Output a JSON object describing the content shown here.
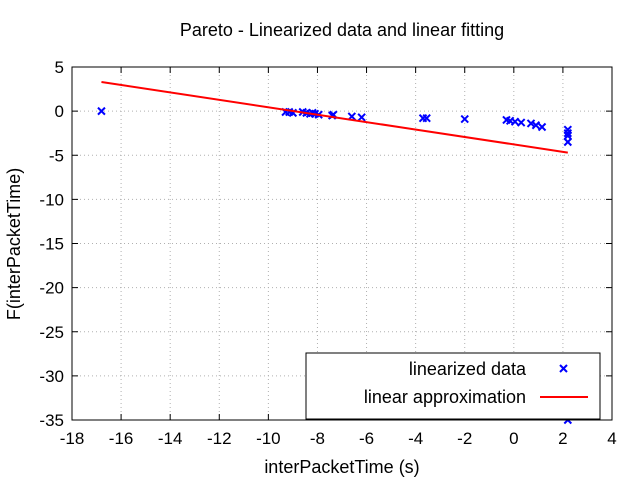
{
  "chart_data": {
    "type": "scatter",
    "title": "Pareto - Linearized data and linear fitting",
    "xlabel": "interPacketTime (s)",
    "ylabel": "F(interPacketTime)",
    "xlim": [
      -18,
      4
    ],
    "ylim": [
      -35,
      5
    ],
    "xticks": [
      -18,
      -16,
      -14,
      -12,
      -10,
      -8,
      -6,
      -4,
      -2,
      0,
      2,
      4
    ],
    "yticks": [
      5,
      0,
      -5,
      -10,
      -15,
      -20,
      -25,
      -30,
      -35
    ],
    "grid": true,
    "legend_position": "bottom-right",
    "series": [
      {
        "name": "linearized data",
        "kind": "points",
        "marker": "x",
        "color": "#0000ff",
        "points": [
          [
            -16.8,
            0.0
          ],
          [
            -9.3,
            -0.1
          ],
          [
            -9.15,
            -0.1
          ],
          [
            -9.0,
            -0.2
          ],
          [
            -8.6,
            -0.1
          ],
          [
            -8.45,
            -0.2
          ],
          [
            -8.3,
            -0.3
          ],
          [
            -8.2,
            -0.2
          ],
          [
            -8.1,
            -0.3
          ],
          [
            -7.95,
            -0.4
          ],
          [
            -7.4,
            -0.5
          ],
          [
            -7.35,
            -0.4
          ],
          [
            -6.6,
            -0.6
          ],
          [
            -6.2,
            -0.7
          ],
          [
            -3.7,
            -0.8
          ],
          [
            -3.55,
            -0.8
          ],
          [
            -2.0,
            -0.9
          ],
          [
            -0.3,
            -1.0
          ],
          [
            -0.15,
            -1.1
          ],
          [
            0.05,
            -1.2
          ],
          [
            0.3,
            -1.3
          ],
          [
            0.7,
            -1.4
          ],
          [
            0.9,
            -1.6
          ],
          [
            1.15,
            -1.8
          ],
          [
            2.2,
            -2.1
          ],
          [
            2.2,
            -2.5
          ],
          [
            2.2,
            -2.8
          ],
          [
            2.2,
            -3.5
          ],
          [
            2.2,
            -35.0
          ]
        ]
      },
      {
        "name": "linear approximation",
        "kind": "line",
        "color": "#ff0000",
        "points": [
          [
            -16.8,
            3.3
          ],
          [
            2.2,
            -4.7
          ]
        ]
      }
    ]
  }
}
